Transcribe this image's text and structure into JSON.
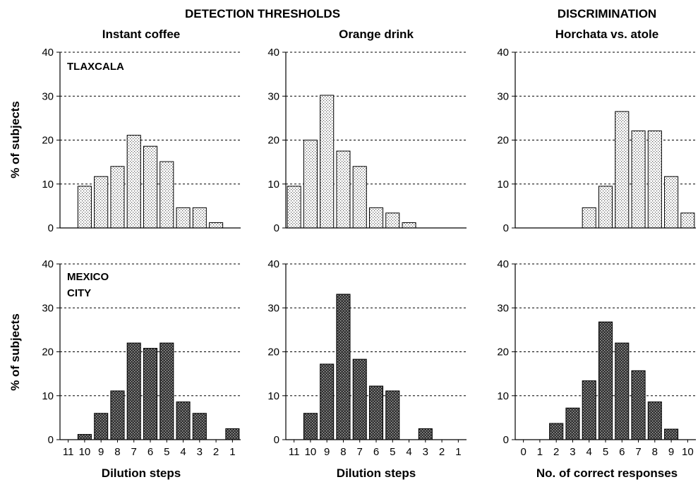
{
  "headers": {
    "detection": "DETECTION THRESHOLDS",
    "discrimination": "DISCRIMINATION"
  },
  "columns": [
    {
      "title": "Instant coffee",
      "xlabel": "Dilution steps"
    },
    {
      "title": "Orange drink",
      "xlabel": "Dilution steps"
    },
    {
      "title": "Horchata vs. atole",
      "xlabel": "No. of correct responses"
    }
  ],
  "ylabel": "% of subjects",
  "rows": [
    {
      "label": "TLAXCALA",
      "label_lines": [
        "TLAXCALA"
      ],
      "pattern": "light-dots"
    },
    {
      "label": "MEXICO CITY",
      "label_lines": [
        "MEXICO",
        "CITY"
      ],
      "pattern": "dark-crosshatch"
    }
  ],
  "chart_data": [
    {
      "type": "bar",
      "row": "TLAXCALA",
      "title": "Instant coffee",
      "xlabel": "Dilution steps",
      "ylabel": "% of subjects",
      "categories": [
        "11",
        "10",
        "9",
        "8",
        "7",
        "6",
        "5",
        "4",
        "3",
        "2",
        "1"
      ],
      "values": [
        0,
        9.5,
        11.7,
        14,
        21.1,
        18.6,
        15.1,
        4.6,
        4.6,
        1.2,
        0
      ],
      "ylim": [
        0,
        40
      ],
      "yticks": [
        0,
        10,
        20,
        30,
        40
      ],
      "grid": "horizontal-dashed"
    },
    {
      "type": "bar",
      "row": "TLAXCALA",
      "title": "Orange drink",
      "xlabel": "Dilution steps",
      "ylabel": "% of subjects",
      "categories": [
        "11",
        "10",
        "9",
        "8",
        "7",
        "6",
        "5",
        "4",
        "3",
        "2",
        "1"
      ],
      "values": [
        9.5,
        20,
        30.2,
        17.5,
        14,
        4.6,
        3.4,
        1.2,
        0,
        0,
        0
      ],
      "ylim": [
        0,
        40
      ],
      "yticks": [
        0,
        10,
        20,
        30,
        40
      ],
      "grid": "horizontal-dashed"
    },
    {
      "type": "bar",
      "row": "TLAXCALA",
      "title": "Horchata vs. atole",
      "xlabel": "No. of correct responses",
      "ylabel": "% of subjects",
      "categories": [
        "0",
        "1",
        "2",
        "3",
        "4",
        "5",
        "6",
        "7",
        "8",
        "9",
        "10"
      ],
      "values": [
        0,
        0,
        0,
        0,
        4.6,
        9.5,
        26.5,
        22.1,
        22.1,
        11.7,
        3.4
      ],
      "ylim": [
        0,
        40
      ],
      "yticks": [
        0,
        10,
        20,
        30,
        40
      ],
      "grid": "horizontal-dashed"
    },
    {
      "type": "bar",
      "row": "MEXICO CITY",
      "title": "Instant coffee",
      "xlabel": "Dilution steps",
      "ylabel": "% of subjects",
      "categories": [
        "11",
        "10",
        "9",
        "8",
        "7",
        "6",
        "5",
        "4",
        "3",
        "2",
        "1"
      ],
      "values": [
        0,
        1.2,
        6,
        11.1,
        22,
        20.8,
        22,
        8.6,
        6,
        0,
        2.5
      ],
      "ylim": [
        0,
        40
      ],
      "yticks": [
        0,
        10,
        20,
        30,
        40
      ],
      "grid": "horizontal-dashed"
    },
    {
      "type": "bar",
      "row": "MEXICO CITY",
      "title": "Orange drink",
      "xlabel": "Dilution steps",
      "ylabel": "% of subjects",
      "categories": [
        "11",
        "10",
        "9",
        "8",
        "7",
        "6",
        "5",
        "4",
        "3",
        "2",
        "1"
      ],
      "values": [
        0,
        6,
        17.2,
        33.1,
        18.3,
        12.2,
        11.1,
        0,
        2.5,
        0,
        0
      ],
      "ylim": [
        0,
        40
      ],
      "yticks": [
        0,
        10,
        20,
        30,
        40
      ],
      "grid": "horizontal-dashed"
    },
    {
      "type": "bar",
      "row": "MEXICO CITY",
      "title": "Horchata vs. atole",
      "xlabel": "No. of correct responses",
      "ylabel": "% of subjects",
      "categories": [
        "0",
        "1",
        "2",
        "3",
        "4",
        "5",
        "6",
        "7",
        "8",
        "9",
        "10"
      ],
      "values": [
        0,
        0,
        3.7,
        7.2,
        13.4,
        26.8,
        22,
        15.7,
        8.6,
        2.4,
        0
      ],
      "ylim": [
        0,
        40
      ],
      "yticks": [
        0,
        10,
        20,
        30,
        40
      ],
      "grid": "horizontal-dashed"
    }
  ]
}
